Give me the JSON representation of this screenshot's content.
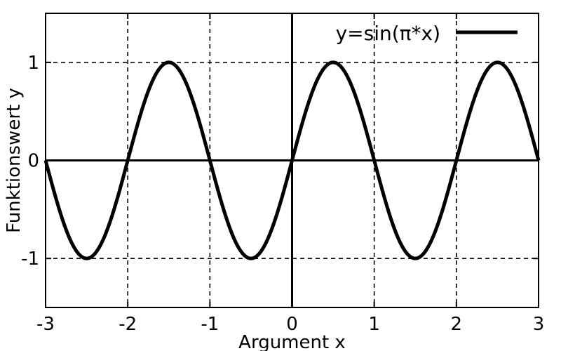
{
  "chart_data": {
    "type": "line",
    "title": "",
    "xlabel": "Argument x",
    "ylabel": "Funktionswert y",
    "xlim": [
      -3,
      3
    ],
    "ylim": [
      -1.5,
      1.5
    ],
    "x_ticks": [
      -3,
      -2,
      -1,
      0,
      1,
      2,
      3
    ],
    "y_ticks": [
      -1,
      0,
      1
    ],
    "x_tick_labels": [
      "-3",
      "-2",
      "-1",
      "0",
      "1",
      "2",
      "3"
    ],
    "y_tick_labels": [
      "-1",
      "0",
      "1"
    ],
    "grid": true,
    "grid_style": "dashed",
    "legend_position": "top-right",
    "series": [
      {
        "name": "y=sin(π*x)",
        "color": "#000000",
        "x": [
          -3,
          -2.75,
          -2.5,
          -2.25,
          -2,
          -1.75,
          -1.5,
          -1.25,
          -1,
          -0.75,
          -0.5,
          -0.25,
          0,
          0.25,
          0.5,
          0.75,
          1,
          1.25,
          1.5,
          1.75,
          2,
          2.25,
          2.5,
          2.75,
          3
        ],
        "y": [
          0,
          -0.7071,
          -1,
          -0.7071,
          0,
          0.7071,
          1,
          0.7071,
          0,
          -0.7071,
          -1,
          -0.7071,
          0,
          0.7071,
          1,
          0.7071,
          0,
          -0.7071,
          -1,
          -0.7071,
          0,
          0.7071,
          1,
          0.7071,
          0
        ]
      }
    ]
  }
}
